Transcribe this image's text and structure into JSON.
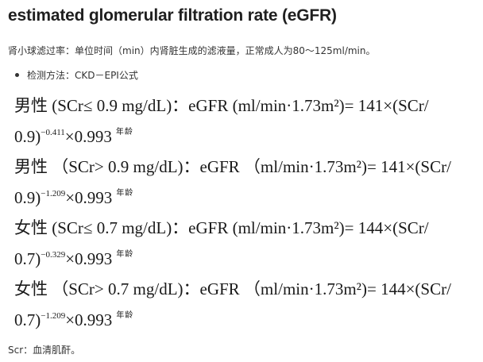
{
  "title": "estimated glomerular filtration rate (eGFR)",
  "intro": "肾小球滤过率：单位时间（min）内肾脏生成的滤液量，正常成人为80～125ml/min。",
  "method": "检测方法：CKD－EPI公式",
  "formulas": [
    {
      "line1": "男性 (SCr≤ 0.9 mg/dL)：eGFR (ml/min·1.73m²)= 141×(SCr/",
      "base": "0.9)",
      "exponent": "−0.411",
      "tail": "×0.993",
      "age": "年龄"
    },
    {
      "line1": "男性 （SCr> 0.9 mg/dL)：eGFR （ml/min·1.73m²)= 141×(SCr/",
      "base": "0.9)",
      "exponent": "−1.209",
      "tail": "×0.993",
      "age": "年龄"
    },
    {
      "line1": "女性 (SCr≤ 0.7 mg/dL)：eGFR (ml/min·1.73m²)= 144×(SCr/",
      "base": "0.7)",
      "exponent": "−0.329",
      "tail": "×0.993",
      "age": "年龄"
    },
    {
      "line1": "女性 （SCr> 0.7 mg/dL)：eGFR （ml/min·1.73m²)= 144×(SCr/",
      "base": "0.7)",
      "exponent": "−1.209",
      "tail": "×0.993",
      "age": "年龄"
    }
  ],
  "note": "Scr：血清肌酐。"
}
